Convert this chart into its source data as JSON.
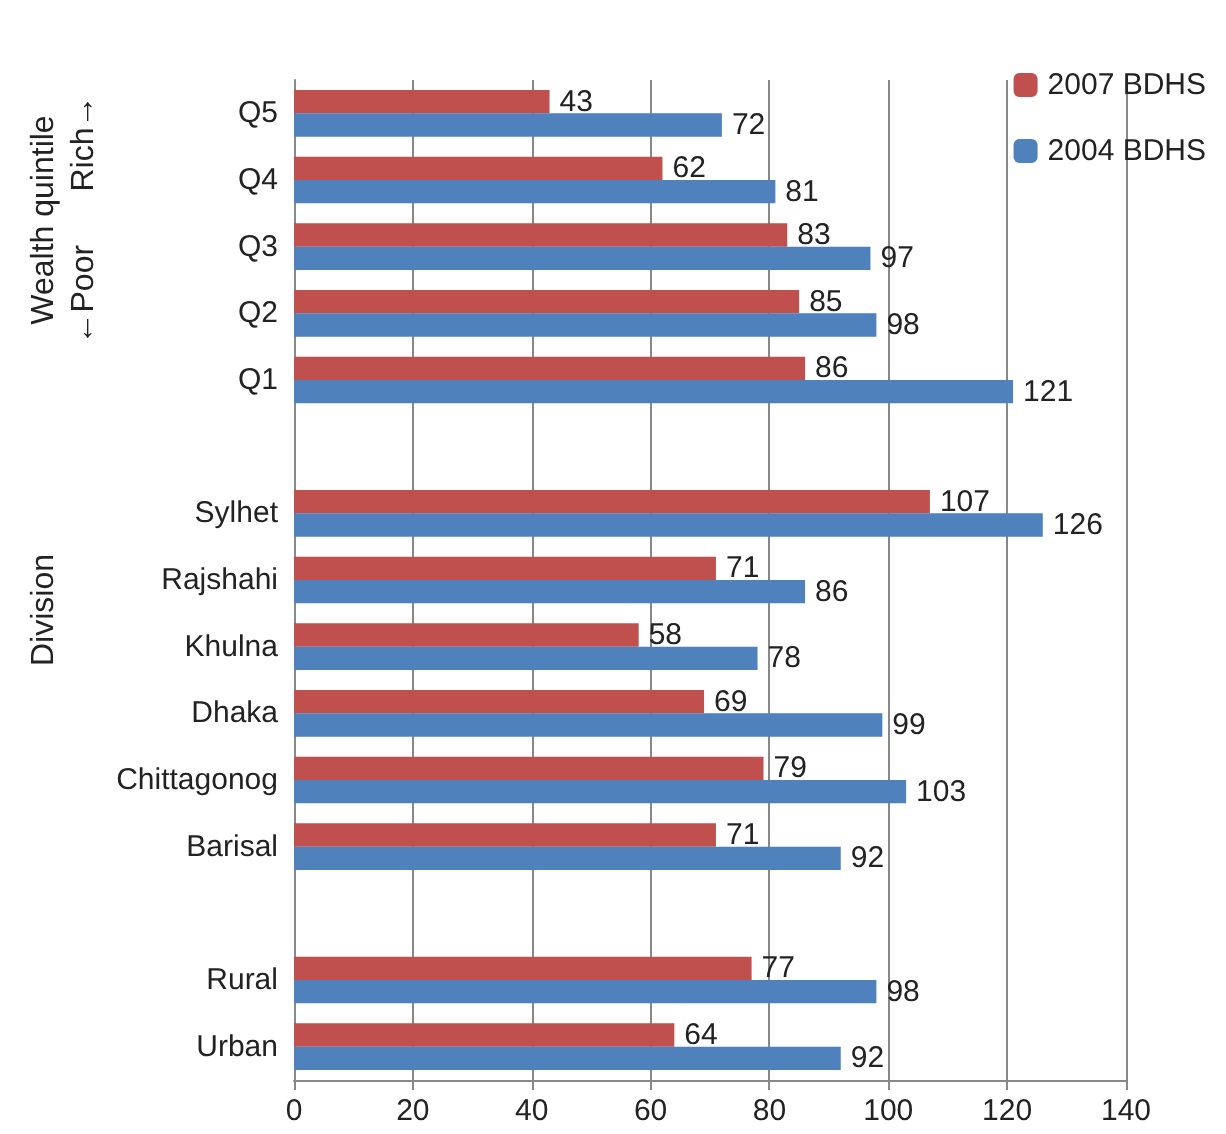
{
  "chart_data": {
    "type": "bar",
    "orientation": "horizontal",
    "categories": [
      "Q5",
      "Q4",
      "Q3",
      "Q2",
      "Q1",
      null,
      "Sylhet",
      "Rajshahi",
      "Khulna",
      "Dhaka",
      "Chittagonog",
      "Barisal",
      null,
      "Rural",
      "Urban"
    ],
    "series": [
      {
        "name": "2007 BDHS",
        "color": "#c0504d",
        "values": [
          43,
          62,
          83,
          85,
          86,
          null,
          107,
          71,
          58,
          69,
          79,
          71,
          null,
          77,
          64
        ]
      },
      {
        "name": "2004 BDHS",
        "color": "#4f81bd",
        "values": [
          72,
          81,
          97,
          98,
          121,
          null,
          126,
          86,
          78,
          99,
          103,
          92,
          null,
          98,
          92
        ]
      }
    ],
    "xlim": [
      0,
      140
    ],
    "xticks": [
      0,
      20,
      40,
      60,
      80,
      100,
      120,
      140
    ],
    "grid": "x",
    "legend": "top right",
    "data_labels": true,
    "annotations": [
      "Wealth quintile",
      "←Poor      Rich→",
      "Division"
    ]
  }
}
